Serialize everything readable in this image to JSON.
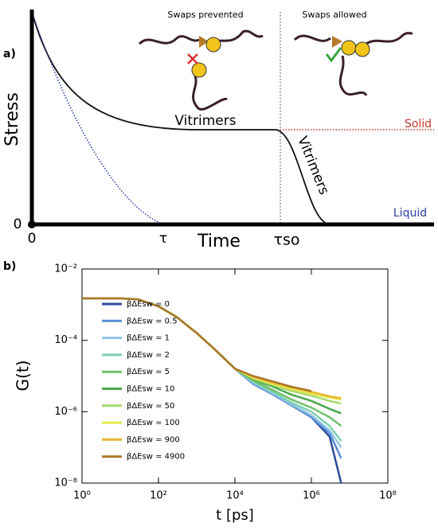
{
  "schematic": {
    "label": "a)",
    "y_label": "Stress",
    "x_label": "Time",
    "x_ticks": [
      "0",
      "τ",
      "τso"
    ],
    "y_tick": "0",
    "annotations": {
      "prevented": "Swaps prevented",
      "allowed": "Swaps allowed",
      "plateau": "Vitrimers",
      "decay": "Vitrimers",
      "solid": "Solid",
      "liquid": "Liquid"
    }
  },
  "chart_data": {
    "type": "line",
    "label": "b)",
    "y_label": "G(t)",
    "x_label": "t [ps]",
    "xscale": "log",
    "yscale": "log",
    "xlim": [
      1,
      100000000
    ],
    "ylim": [
      1e-08,
      0.01
    ],
    "xticks": [
      {
        "value": 1,
        "label": "10⁰"
      },
      {
        "value": 100,
        "label": "10²"
      },
      {
        "value": 10000,
        "label": "10⁴"
      },
      {
        "value": 1000000,
        "label": "10⁶"
      },
      {
        "value": 100000000,
        "label": "10⁸"
      }
    ],
    "yticks": [
      {
        "value": 1e-08,
        "label": "10⁻⁸"
      },
      {
        "value": 1e-06,
        "label": "10⁻⁶"
      },
      {
        "value": 0.0001,
        "label": "10⁻⁴"
      },
      {
        "value": 0.01,
        "label": "10⁻²"
      }
    ],
    "x": [
      1,
      10,
      30,
      100,
      300,
      1000,
      3000,
      10000,
      30000,
      100000,
      300000,
      1000000,
      3000000,
      6000000
    ],
    "series": [
      {
        "name": "βΔEsw = 0",
        "color": "#2b4c9c",
        "values": [
          0.0015,
          0.0015,
          0.0014,
          0.0009,
          0.00045,
          0.00016,
          5.5e-05,
          1.6e-05,
          6e-06,
          3e-06,
          1.5e-06,
          7e-07,
          2e-07,
          1e-08
        ]
      },
      {
        "name": "βΔEsw = 0.5",
        "color": "#5b8fd6",
        "values": [
          0.0015,
          0.0015,
          0.0014,
          0.0009,
          0.00045,
          0.00016,
          5.5e-05,
          1.6e-05,
          6e-06,
          3e-06,
          1.5e-06,
          7e-07,
          2.5e-07,
          5e-08
        ]
      },
      {
        "name": "βΔEsw = 1",
        "color": "#8fc4e6",
        "values": [
          0.0015,
          0.0015,
          0.0014,
          0.0009,
          0.00045,
          0.00016,
          5.5e-05,
          1.6e-05,
          6.5e-06,
          3.2e-06,
          1.6e-06,
          8e-07,
          3e-07,
          1e-07
        ]
      },
      {
        "name": "βΔEsw = 2",
        "color": "#7ccfb0",
        "values": [
          0.0015,
          0.0015,
          0.0014,
          0.0009,
          0.00045,
          0.00016,
          5.5e-05,
          1.6e-05,
          7e-06,
          3.5e-06,
          1.8e-06,
          1e-06,
          4e-07,
          1.5e-07
        ]
      },
      {
        "name": "βΔEsw = 5",
        "color": "#6fc06a",
        "values": [
          0.0015,
          0.0015,
          0.0014,
          0.0009,
          0.00045,
          0.00016,
          5.5e-05,
          1.6e-05,
          7.5e-06,
          4e-06,
          2.2e-06,
          1.3e-06,
          7e-07,
          4e-07
        ]
      },
      {
        "name": "βΔEsw = 10",
        "color": "#4aa84a",
        "values": [
          0.0015,
          0.0015,
          0.0014,
          0.0009,
          0.00045,
          0.00016,
          5.5e-05,
          1.6e-05,
          8e-06,
          5e-06,
          3e-06,
          2e-06,
          1.2e-06,
          9e-07
        ]
      },
      {
        "name": "βΔEsw = 50",
        "color": "#a6d96a",
        "values": [
          0.0015,
          0.0015,
          0.0014,
          0.0009,
          0.00045,
          0.00016,
          5.5e-05,
          1.6e-05,
          8.5e-06,
          5.5e-06,
          3.8e-06,
          2.8e-06,
          2e-06,
          1.7e-06
        ]
      },
      {
        "name": "βΔEsw = 100",
        "color": "#e6e64a",
        "values": [
          0.0015,
          0.0015,
          0.0014,
          0.0009,
          0.00045,
          0.00016,
          5.5e-05,
          1.6e-05,
          9e-06,
          6e-06,
          4.3e-06,
          3.2e-06,
          2.5e-06,
          2.2e-06
        ]
      },
      {
        "name": "βΔEsw = 900",
        "color": "#e8b830",
        "values": [
          0.0015,
          0.0015,
          0.0014,
          0.0009,
          0.00045,
          0.00016,
          5.5e-05,
          1.6e-05,
          9.5e-06,
          6.5e-06,
          4.8e-06,
          3.6e-06,
          2.7e-06,
          2.4e-06
        ]
      },
      {
        "name": "βΔEsw = 4900",
        "color": "#a8782a",
        "values": [
          0.0015,
          0.0015,
          0.0014,
          0.0009,
          0.00045,
          0.00016,
          5.5e-05,
          1.6e-05,
          1e-05,
          7e-06,
          5e-06,
          3.8e-06,
          null,
          null
        ]
      }
    ]
  }
}
